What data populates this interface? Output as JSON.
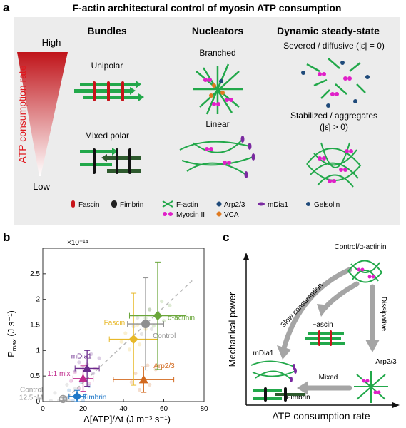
{
  "panel_a": {
    "letter": "a",
    "title": "F-actin architectural control of myosin ATP consumption",
    "rate_label": "ATP consumption rate",
    "high": "High",
    "low": "Low",
    "col_bundles": "Bundles",
    "col_nucleators": "Nucleators",
    "col_dynamic": "Dynamic steady-state",
    "unipolar": "Unipolar",
    "mixed_polar": "Mixed polar",
    "branched": "Branched",
    "linear": "Linear",
    "severed": "Severed / diffusive (|ε̇| = 0)",
    "stabilized": "Stabilized / aggregates",
    "stabilized_eq": "(|ε̇| > 0)",
    "legend": {
      "fascin": "Fascin",
      "fimbrin": "Fimbrin",
      "factin": "F-actin",
      "myosin": "Myosin II",
      "arp": "Arp2/3",
      "vca": "VCA",
      "mdia": "mDia1",
      "gelsolin": "Gelsolin"
    }
  },
  "panel_b": {
    "letter": "b",
    "exponent": "×10⁻¹⁴",
    "ylabel_main": "P",
    "ylabel_sub": "max",
    "ylabel_unit": " (J s⁻¹)",
    "xlabel": "Δ[ATP]/Δt (J m⁻³ s⁻¹)"
  },
  "panel_c": {
    "letter": "c",
    "ylabel": "Mechanical power",
    "xlabel": "ATP consumption rate",
    "control": "Control/α-actinin",
    "slow": "Slow consumption",
    "dissipative": "Dissipative",
    "fascin": "Fascin",
    "mdia": "mDia1",
    "arp": "Arp2/3",
    "mixed": "Mixed",
    "fimbrin": "Fimbrin"
  },
  "chart_data": {
    "type": "scatter",
    "xlabel": "Δ[ATP]/Δt (J m⁻³ s⁻¹)",
    "ylabel": "Pmax (J s⁻¹)",
    "y_scale_label": "×10⁻¹⁴",
    "xlim": [
      0,
      80
    ],
    "ylim": [
      0,
      3.0
    ],
    "xticks": [
      0,
      20,
      40,
      60,
      80
    ],
    "yticks": [
      0,
      0.5,
      1.0,
      1.5,
      2.0,
      2.5
    ],
    "yticklabels": [
      "0",
      "0.5",
      "1",
      "1.5",
      "2",
      "2.5"
    ],
    "fit_line": {
      "style": "dashed",
      "color": "#b8b8b8",
      "from": [
        10,
        0.0
      ],
      "to": [
        75,
        2.4
      ]
    },
    "series": [
      {
        "name": "Control 12.5nM",
        "color": "#9a9a9a",
        "marker": "circle-cross",
        "x": 10,
        "y": 0.05,
        "xerr": 2,
        "yerr": 0.03
      },
      {
        "name": "Fimbrin",
        "color": "#1f78c8",
        "marker": "diamond",
        "x": 17,
        "y": 0.1,
        "xerr": 4,
        "yerr": 0.12
      },
      {
        "name": "1:1 mix",
        "color": "#c02a8c",
        "marker": "triangle",
        "x": 20,
        "y": 0.45,
        "xerr": 5,
        "yerr": 0.25
      },
      {
        "name": "mDia1",
        "color": "#6a2a8c",
        "marker": "triangle",
        "x": 22,
        "y": 0.65,
        "xerr": 6,
        "yerr": 0.35
      },
      {
        "name": "Arp2/3",
        "color": "#d2691e",
        "marker": "triangle",
        "x": 50,
        "y": 0.43,
        "xerr": 15,
        "yerr": 0.25
      },
      {
        "name": "Fascin",
        "color": "#e8b92a",
        "marker": "diamond",
        "x": 45,
        "y": 1.22,
        "xerr": 12,
        "yerr": 0.9
      },
      {
        "name": "Control",
        "color": "#8f8f8f",
        "marker": "circle",
        "x": 51,
        "y": 1.52,
        "xerr": 9,
        "yerr": 0.9
      },
      {
        "name": "α-actinin",
        "color": "#6aa63a",
        "marker": "diamond",
        "x": 57,
        "y": 1.68,
        "xerr": 14,
        "yerr": 1.05
      }
    ]
  }
}
